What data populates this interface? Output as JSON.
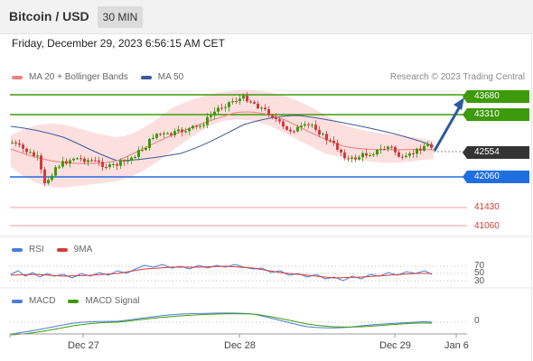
{
  "header": {
    "title": "Bitcoin / USD",
    "timeframe": "30 MIN"
  },
  "datetime": "Friday, December 29, 2023 6:56:15 AM CET",
  "main_legend": {
    "ma20_label": "MA 20 + Bollinger Bands",
    "ma50_label": "MA 50"
  },
  "credit": "Research © 2023 Trading Central",
  "levels": {
    "resistance_2": "43680",
    "resistance_1": "43310",
    "last_price": "42554",
    "support_1": "42060",
    "support_2": "41430",
    "support_3": "41060"
  },
  "rsi_legend": {
    "rsi_label": "RSI",
    "ma_label": "9MA",
    "levels": [
      "70",
      "50",
      "30"
    ]
  },
  "macd_legend": {
    "macd_label": "MACD",
    "signal_label": "MACD Signal",
    "zero": "0"
  },
  "x_axis": [
    "Dec 27",
    "Dec 28",
    "Dec 29",
    "Jan 6"
  ],
  "colors": {
    "ma20": "#f08080",
    "ma50": "#3a5b9a",
    "bollinger_fill": "#fbd4d4",
    "resistance": "#3d9a0a",
    "support": "#1f6fe0",
    "weak_support": "#e27070",
    "up_candle": "#3d9a0a",
    "down_candle": "#d23b3b",
    "rsi": "#4a7fd6",
    "rsi_ma": "#d23b3b",
    "macd": "#4a7fd6",
    "macd_signal": "#3d9a0a",
    "projection_arrow": "#2c5aa0"
  },
  "chart_data": {
    "type": "candlestick",
    "price_levels": [
      43680,
      43310,
      42554,
      42060,
      41430,
      41060
    ],
    "last_price": 42554,
    "projection": {
      "from": 42554,
      "to": 43680
    },
    "ma20": [
      42400,
      42350,
      42300,
      42280,
      42270,
      42290,
      42320,
      42380,
      42500,
      42650,
      42800,
      42950,
      43050,
      43150,
      43250,
      43300,
      43250,
      43150,
      43000,
      42850,
      42700,
      42600,
      42550,
      42520,
      42500,
      42510,
      42530,
      42540
    ],
    "ma50": [
      42950,
      42800,
      42650,
      42500,
      42400,
      42330,
      42300,
      42300,
      42350,
      42450,
      42580,
      42700,
      42850,
      42980,
      43100,
      43200,
      43250,
      43200,
      43100,
      42950,
      42800,
      42700,
      42650,
      42620,
      42600,
      42580,
      42570,
      42565
    ],
    "rsi_levels": [
      70,
      50,
      30
    ],
    "macd_zero": 0
  }
}
